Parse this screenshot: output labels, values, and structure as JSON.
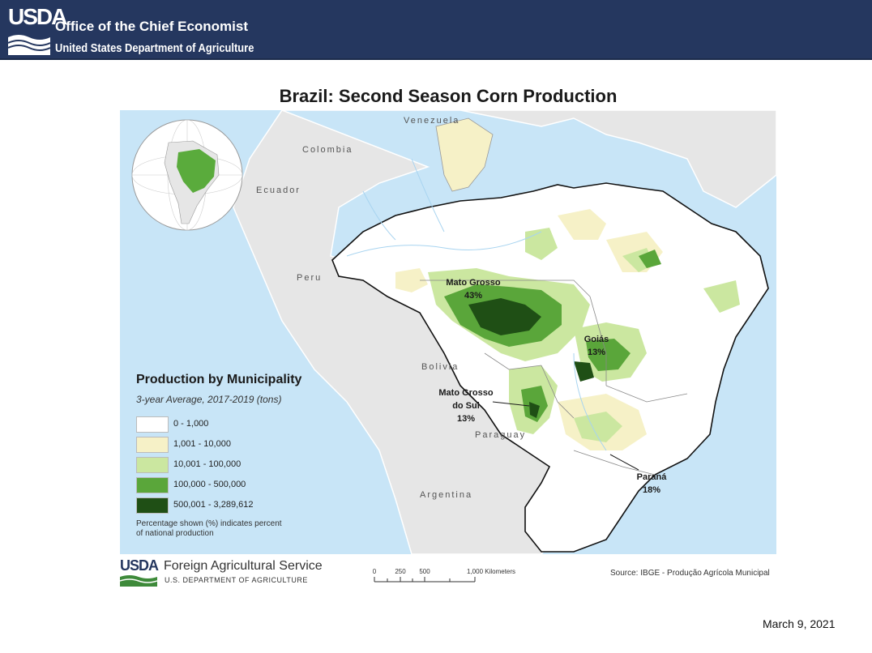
{
  "header": {
    "logo_text": "USDA",
    "organization": "Office of the Chief Economist",
    "department": "United States Department of Agriculture",
    "background": "#25375f"
  },
  "map": {
    "title": "Brazil: Second Season Corn Production",
    "country_labels": {
      "venezuela": "Venezuela",
      "colombia": "Colombia",
      "ecuador": "Ecuador",
      "peru": "Peru",
      "bolivia": "Bolivia",
      "paraguay": "Paraguay",
      "argentina": "Argentina"
    },
    "state_callouts": [
      {
        "id": "mato-grosso",
        "name": "Mato Grosso",
        "share": "43%"
      },
      {
        "id": "goias",
        "name": "Goiás",
        "share": "13%"
      },
      {
        "id": "mato-grosso-do-sul",
        "name_line1": "Mato Grosso",
        "name_line2": "do Sul",
        "share": "13%"
      },
      {
        "id": "parana",
        "name": "Paraná",
        "share": "18%"
      }
    ],
    "colors": {
      "ocean": "#c8e5f7",
      "land": "#e6e6e6",
      "brazil_base": "#ffffff",
      "globe_brazil": "#5aab3c"
    }
  },
  "legend": {
    "title": "Production by Municipality",
    "subtitle": "3-year Average, 2017-2019 (tons)",
    "classes": [
      {
        "label": "0 - 1,000",
        "color": "#ffffff"
      },
      {
        "label": "1,001 - 10,000",
        "color": "#f6f1c7"
      },
      {
        "label": "10,001 - 100,000",
        "color": "#cbe7a0"
      },
      {
        "label": "100,000 - 500,000",
        "color": "#5aa63a"
      },
      {
        "label": "500,001 - 3,289,612",
        "color": "#1f4f15"
      }
    ],
    "note": "Percentage shown (%) indicates percent of national production"
  },
  "footer": {
    "fas_logo": "USDA",
    "fas_name": "Foreign Agricultural Service",
    "fas_dept": "U.S. DEPARTMENT OF AGRICULTURE",
    "scale_labels": [
      "0",
      "250",
      "500",
      "1,000 Kilometers"
    ],
    "source": "Source: IBGE - Produção Agrícola Municipal",
    "date": "March 9, 2021"
  }
}
